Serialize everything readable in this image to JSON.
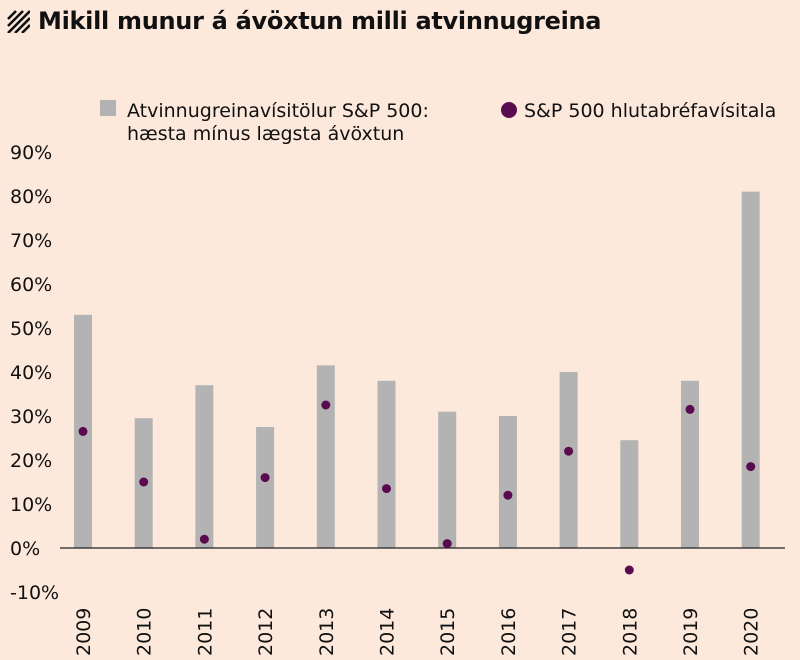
{
  "header": {
    "title": "Mikill munur á ávöxtun milli atvinnugreina"
  },
  "colors": {
    "background": "#fde9dc",
    "bar": "#b3b3b3",
    "point": "#5a0a4e",
    "text": "#111111"
  },
  "chart_data": {
    "type": "bar",
    "categories": [
      "2009",
      "2010",
      "2011",
      "2012",
      "2013",
      "2014",
      "2015",
      "2016",
      "2017",
      "2018",
      "2019",
      "2020"
    ],
    "series": [
      {
        "name": "Atvinnugreinavísitölur S&P 500: hæsta mínus lægsta ávöxtun",
        "type": "bar",
        "values": [
          53,
          29.5,
          37,
          27.5,
          41.5,
          38,
          31,
          30,
          40,
          24.5,
          38,
          81
        ]
      },
      {
        "name": "S&P 500 hlutabréfavísitala",
        "type": "scatter",
        "values": [
          26.5,
          15,
          2,
          16,
          32.5,
          13.5,
          1,
          12,
          22,
          -5,
          31.5,
          18.5
        ]
      }
    ],
    "legend": [
      {
        "icon": "gray-square-icon",
        "lines": [
          "Atvinnugreinavísitölur S&P 500:",
          "hæsta mínus lægsta ávöxtun"
        ]
      },
      {
        "icon": "purple-dot-icon",
        "lines": [
          "S&P 500 hlutabréfavísitala"
        ]
      }
    ],
    "y_ticks": [
      "90%",
      "80%",
      "70%",
      "60%",
      "50%",
      "40%",
      "30%",
      "20%",
      "10%",
      "0%",
      "-10%"
    ],
    "y_tick_values": [
      90,
      80,
      70,
      60,
      50,
      40,
      30,
      20,
      10,
      0,
      -10
    ],
    "ylim": [
      -10,
      90
    ],
    "legend_position": "top",
    "grid": false
  }
}
